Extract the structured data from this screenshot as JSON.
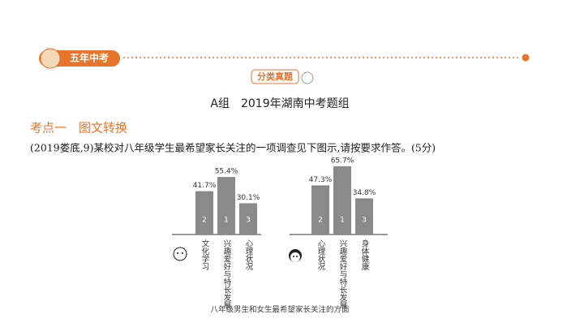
{
  "badge": "五年中考",
  "tag": "分类真题",
  "group_title": "A组　2019年湖南中考题组",
  "section": "考点一　图文转换",
  "question": "(2019娄底,9)某校对八年级学生最希望家长关注的一项调查见下图示,请按要求作答。(5分)",
  "caption": "八年级男生和女生最希望家长关注的方面",
  "chart_data": [
    {
      "type": "bar",
      "categories": [
        "文化学习",
        "兴趣爱好与特长发展",
        "心理状况"
      ],
      "values": [
        41.7,
        55.4,
        30.1
      ],
      "value_labels": [
        "41.7%",
        "55.4%",
        "30.1%"
      ],
      "ranks": [
        "2",
        "1",
        "3"
      ],
      "color": "#8a8a8a"
    },
    {
      "type": "bar",
      "categories": [
        "心理状况",
        "兴趣爱好与特长发展",
        "身体健康"
      ],
      "values": [
        47.3,
        65.7,
        34.8
      ],
      "value_labels": [
        "47.3%",
        "65.7%",
        "34.8%"
      ],
      "ranks": [
        "2",
        "1",
        "3"
      ],
      "color": "#8a8a8a"
    }
  ]
}
